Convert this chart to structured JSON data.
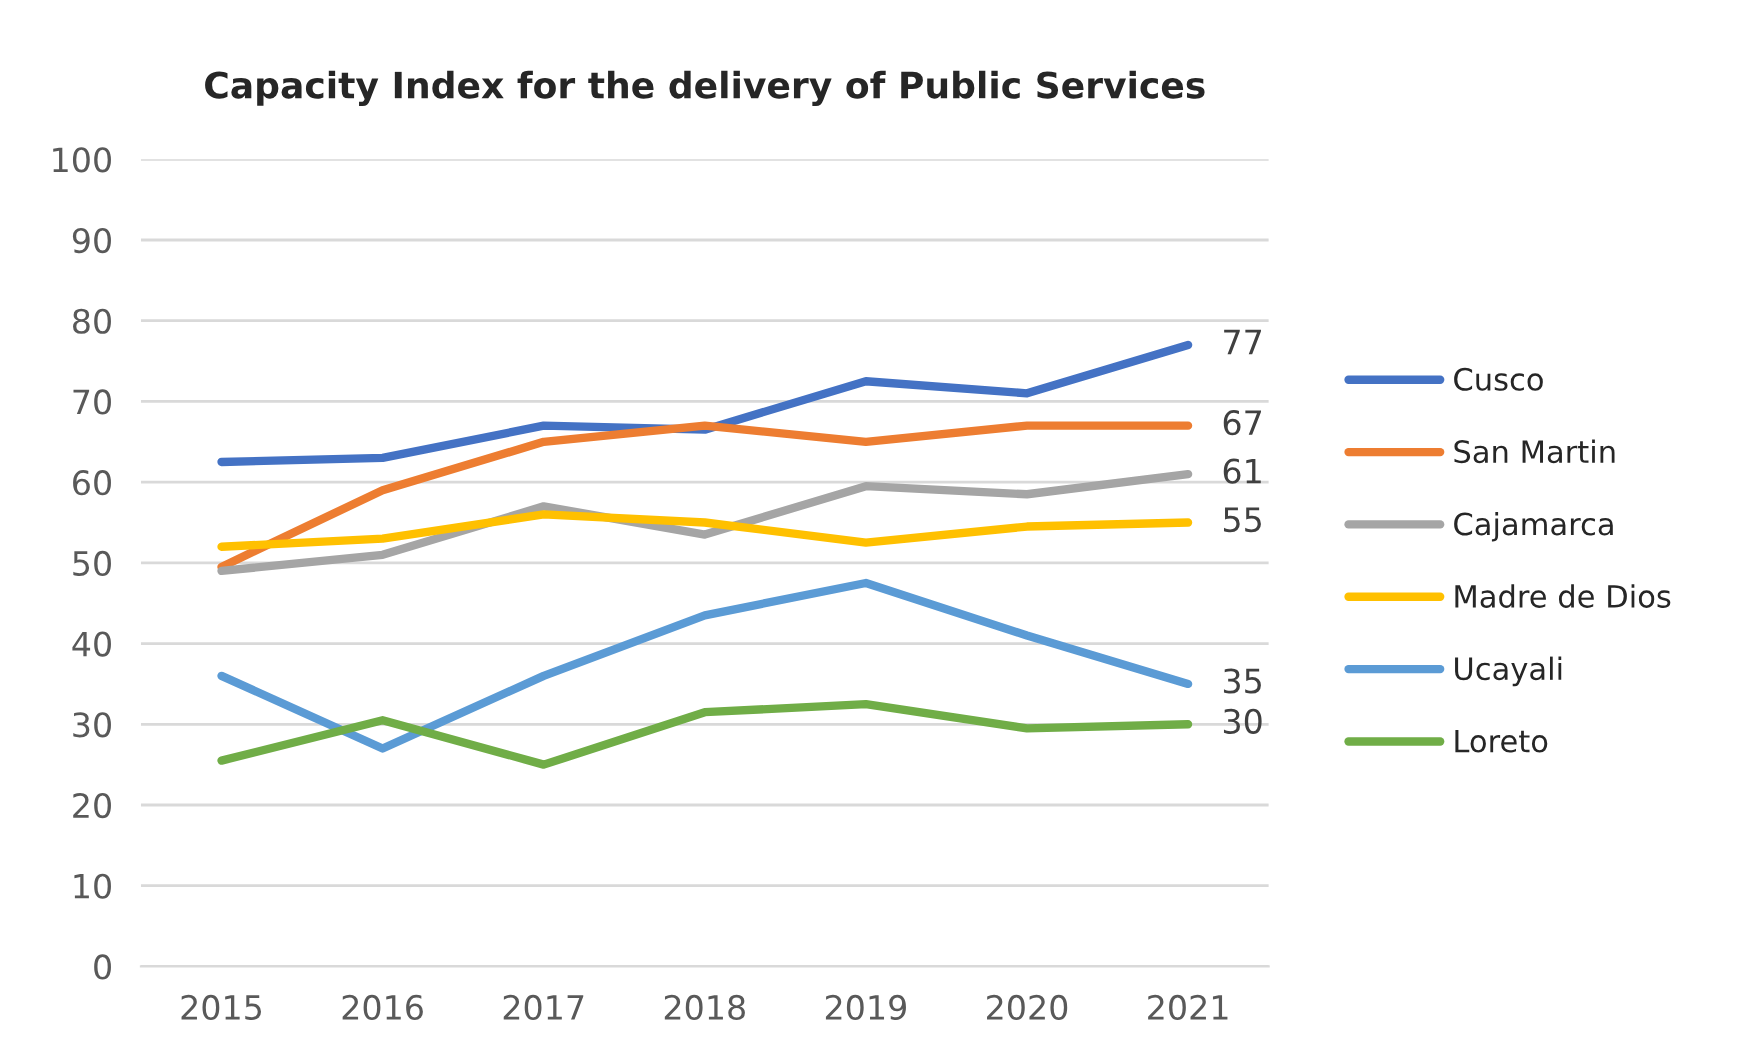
{
  "chart_data": {
    "type": "line",
    "title": "Capacity Index for the delivery of Public Services",
    "categories": [
      "2015",
      "2016",
      "2017",
      "2018",
      "2019",
      "2020",
      "2021"
    ],
    "ylim": [
      0,
      100
    ],
    "yticks": [
      0,
      10,
      20,
      30,
      40,
      50,
      60,
      70,
      80,
      90,
      100
    ],
    "grid": "y",
    "legend": "right",
    "marker": "none",
    "line_style": "solid",
    "series": [
      {
        "name": "Cusco",
        "color": "#4472c4",
        "values": [
          62.5,
          63,
          67,
          66.5,
          72.5,
          71,
          77
        ],
        "value_labels": [
          null,
          null,
          null,
          null,
          null,
          null,
          "77"
        ]
      },
      {
        "name": "San Martin",
        "color": "#ed7d31",
        "values": [
          49.5,
          59,
          65,
          67,
          65,
          67,
          67
        ],
        "value_labels": [
          null,
          null,
          null,
          null,
          null,
          null,
          "67"
        ]
      },
      {
        "name": "Cajamarca",
        "color": "#a5a5a5",
        "values": [
          49,
          51,
          57,
          53.5,
          59.5,
          58.5,
          61
        ],
        "value_labels": [
          null,
          null,
          null,
          null,
          null,
          null,
          "61"
        ]
      },
      {
        "name": "Madre de Dios",
        "color": "#ffc000",
        "values": [
          52,
          53,
          56,
          55,
          52.5,
          54.5,
          55
        ],
        "value_labels": [
          null,
          null,
          null,
          null,
          null,
          null,
          "55"
        ]
      },
      {
        "name": "Ucayali",
        "color": "#5b9bd5",
        "values": [
          36,
          27,
          36,
          43.5,
          47.5,
          41,
          35
        ],
        "value_labels": [
          null,
          null,
          null,
          null,
          null,
          null,
          "35"
        ]
      },
      {
        "name": "Loreto",
        "color": "#70ad47",
        "values": [
          25.5,
          30.5,
          25,
          31.5,
          32.5,
          29.5,
          30
        ],
        "value_labels": [
          null,
          null,
          null,
          null,
          null,
          null,
          "30"
        ]
      }
    ]
  }
}
